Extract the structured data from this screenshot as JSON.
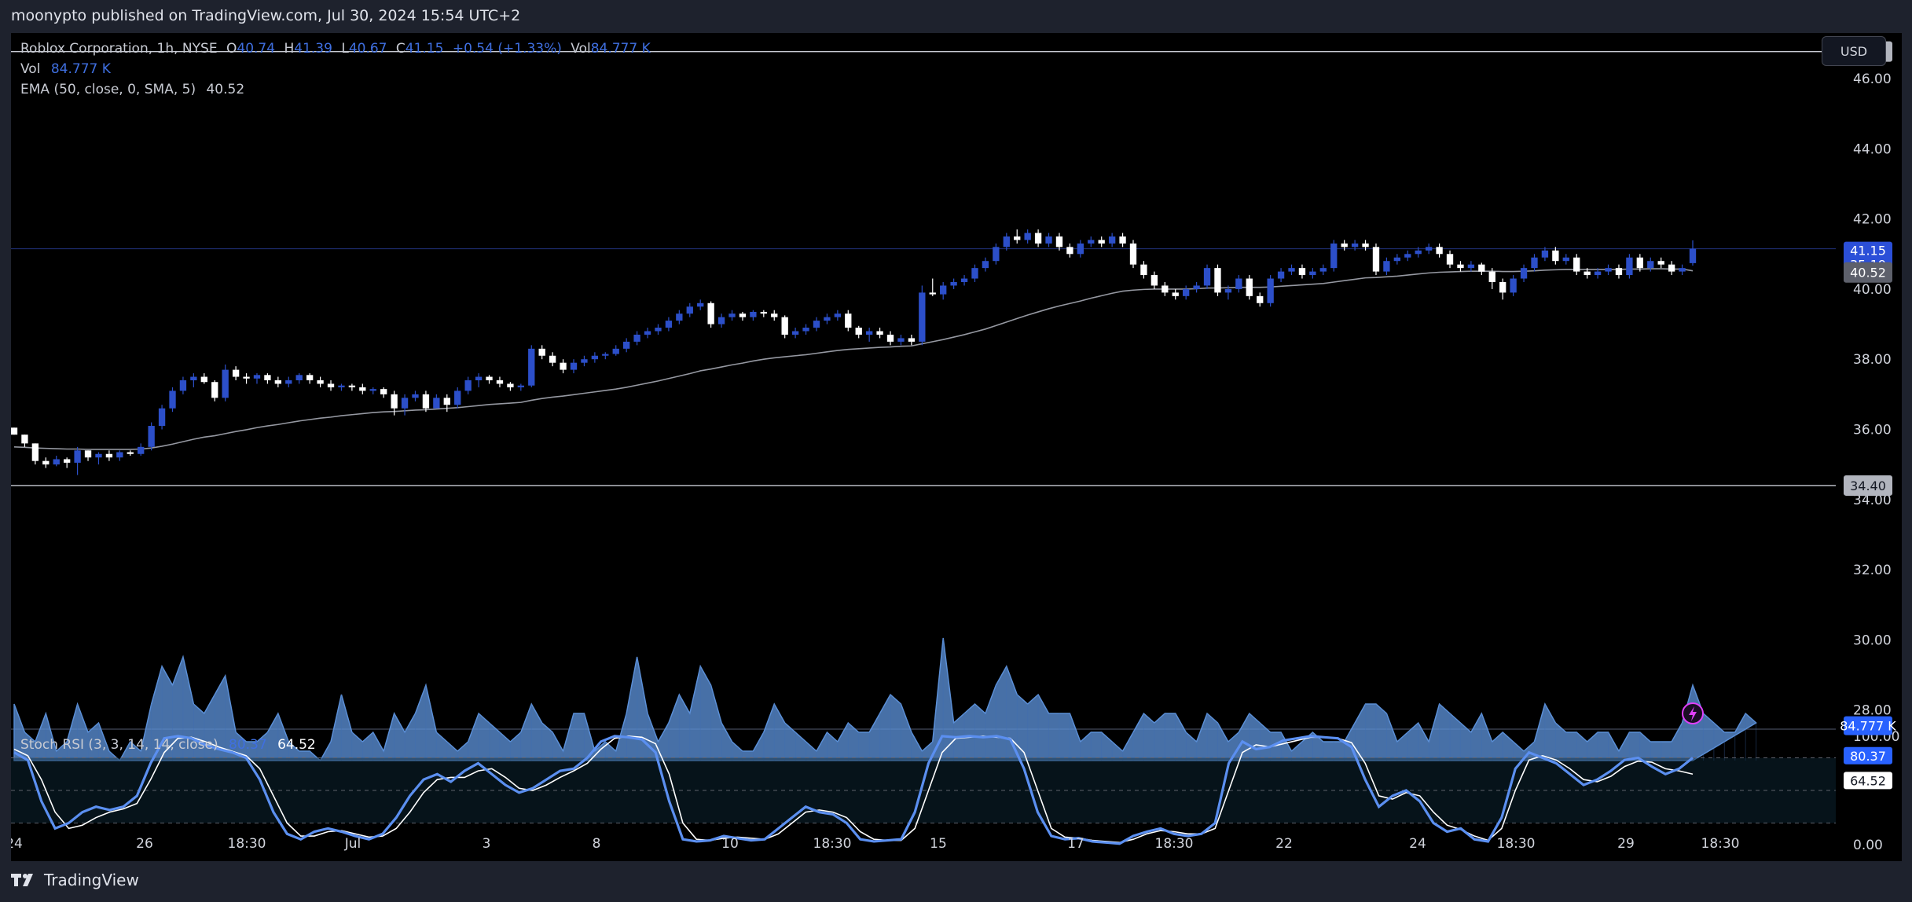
{
  "header": {
    "publisher": "moonypto published on TradingView.com, Jul 30, 2024 15:54 UTC+2"
  },
  "legend": {
    "symbol": "Roblox Corporation, 1h, NYSE",
    "o_label": "O",
    "o_value": "40.74",
    "h_label": "H",
    "h_value": "41.39",
    "l_label": "L",
    "l_value": "40.67",
    "c_label": "C",
    "c_value": "41.15",
    "change": "+0.54 (+1.33%)",
    "vol_label": "Vol",
    "vol_value": "84.777 K",
    "vol_row_label": "Vol",
    "vol_row_value": "84.777 K",
    "ema": "EMA (50, close, 0, SMA, 5)",
    "ema_value": "40.52",
    "stoch": "Stoch RSI (3, 3, 14, 14, close)",
    "stoch_k": "80.37",
    "stoch_d": "64.52"
  },
  "currency_button": "USD",
  "footer": {
    "brand": "TradingView"
  },
  "colors": {
    "up": "#2c4fc9",
    "down": "#ffffff",
    "volume": "#5b8fd6",
    "ema": "#9598a1",
    "stoch_k": "#5b8ff0",
    "stoch_d": "#ffffff",
    "accent": "#2962ff",
    "flash": "#e040fb"
  },
  "icons": {
    "flash": "lightning-icon",
    "logo": "tradingview-logo-icon"
  },
  "chart_data": {
    "type": "candlestick",
    "price_axis": {
      "ticks": [
        "46.00",
        "44.00",
        "42.00",
        "40.00",
        "38.00",
        "36.00",
        "34.00",
        "32.00",
        "30.00",
        "28.00"
      ],
      "range": [
        27.5,
        47.3
      ]
    },
    "stoch_axis": {
      "ticks": [
        "100.00",
        "0.00"
      ],
      "range": [
        -5,
        105
      ]
    },
    "x_ticks": [
      "24",
      "26",
      "18:30",
      "Jul",
      "3",
      "8",
      "10",
      "18:30",
      "15",
      "17",
      "18:30",
      "22",
      "24",
      "18:30",
      "29",
      "18:30"
    ],
    "horizontal_lines": [
      46.77,
      34.4
    ],
    "price_labels": {
      "high_line": "46.77",
      "low_line": "34.40",
      "last": "41.15",
      "countdown": "35:19",
      "ema": "40.52",
      "volume": "84.777 K",
      "stoch_k": "80.37",
      "stoch_d": "64.52"
    },
    "last_price": 41.15,
    "ema_value": 40.52,
    "candles": [
      [
        36.05,
        36.05,
        35.85,
        35.85
      ],
      [
        35.85,
        35.85,
        35.5,
        35.6
      ],
      [
        35.6,
        35.6,
        35.0,
        35.1
      ],
      [
        35.1,
        35.2,
        34.9,
        35.0
      ],
      [
        35.0,
        35.25,
        34.95,
        35.15
      ],
      [
        35.15,
        35.2,
        34.9,
        35.05
      ],
      [
        35.05,
        35.5,
        34.7,
        35.4
      ],
      [
        35.4,
        35.4,
        35.1,
        35.2
      ],
      [
        35.2,
        35.35,
        35.0,
        35.3
      ],
      [
        35.3,
        35.4,
        35.1,
        35.2
      ],
      [
        35.2,
        35.4,
        35.1,
        35.35
      ],
      [
        35.35,
        35.4,
        35.25,
        35.3
      ],
      [
        35.3,
        35.6,
        35.25,
        35.5
      ],
      [
        35.5,
        36.2,
        35.4,
        36.1
      ],
      [
        36.1,
        36.7,
        36.0,
        36.6
      ],
      [
        36.6,
        37.2,
        36.5,
        37.1
      ],
      [
        37.1,
        37.5,
        37.0,
        37.4
      ],
      [
        37.4,
        37.6,
        37.2,
        37.5
      ],
      [
        37.5,
        37.6,
        37.3,
        37.35
      ],
      [
        37.35,
        37.4,
        36.8,
        36.9
      ],
      [
        36.9,
        37.85,
        36.8,
        37.7
      ],
      [
        37.7,
        37.8,
        37.4,
        37.5
      ],
      [
        37.5,
        37.6,
        37.3,
        37.45
      ],
      [
        37.45,
        37.6,
        37.3,
        37.55
      ],
      [
        37.55,
        37.6,
        37.3,
        37.4
      ],
      [
        37.4,
        37.5,
        37.2,
        37.3
      ],
      [
        37.3,
        37.5,
        37.2,
        37.4
      ],
      [
        37.4,
        37.6,
        37.3,
        37.55
      ],
      [
        37.55,
        37.6,
        37.3,
        37.4
      ],
      [
        37.4,
        37.5,
        37.2,
        37.3
      ],
      [
        37.3,
        37.4,
        37.1,
        37.2
      ],
      [
        37.2,
        37.3,
        37.1,
        37.25
      ],
      [
        37.25,
        37.3,
        37.1,
        37.2
      ],
      [
        37.2,
        37.3,
        37.0,
        37.1
      ],
      [
        37.1,
        37.2,
        37.0,
        37.15
      ],
      [
        37.15,
        37.2,
        36.9,
        37.0
      ],
      [
        37.0,
        37.1,
        36.4,
        36.6
      ],
      [
        36.6,
        37.0,
        36.4,
        36.9
      ],
      [
        36.9,
        37.1,
        36.8,
        37.0
      ],
      [
        37.0,
        37.1,
        36.5,
        36.6
      ],
      [
        36.6,
        37.0,
        36.6,
        36.9
      ],
      [
        36.9,
        37.0,
        36.5,
        36.7
      ],
      [
        36.7,
        37.2,
        36.6,
        37.1
      ],
      [
        37.1,
        37.5,
        37.0,
        37.4
      ],
      [
        37.4,
        37.6,
        37.2,
        37.5
      ],
      [
        37.5,
        37.55,
        37.3,
        37.4
      ],
      [
        37.4,
        37.5,
        37.2,
        37.3
      ],
      [
        37.3,
        37.35,
        37.1,
        37.2
      ],
      [
        37.2,
        37.3,
        37.1,
        37.25
      ],
      [
        37.25,
        38.4,
        37.2,
        38.3
      ],
      [
        38.3,
        38.4,
        38.0,
        38.1
      ],
      [
        38.1,
        38.2,
        37.8,
        37.9
      ],
      [
        37.9,
        38.0,
        37.6,
        37.7
      ],
      [
        37.7,
        38.0,
        37.6,
        37.9
      ],
      [
        37.9,
        38.1,
        37.8,
        38.0
      ],
      [
        38.0,
        38.2,
        37.9,
        38.1
      ],
      [
        38.1,
        38.2,
        38.0,
        38.15
      ],
      [
        38.15,
        38.4,
        38.1,
        38.3
      ],
      [
        38.3,
        38.6,
        38.2,
        38.5
      ],
      [
        38.5,
        38.8,
        38.4,
        38.7
      ],
      [
        38.7,
        38.9,
        38.6,
        38.8
      ],
      [
        38.8,
        39.0,
        38.7,
        38.9
      ],
      [
        38.9,
        39.2,
        38.8,
        39.1
      ],
      [
        39.1,
        39.4,
        39.0,
        39.3
      ],
      [
        39.3,
        39.6,
        39.2,
        39.5
      ],
      [
        39.5,
        39.7,
        39.4,
        39.6
      ],
      [
        39.6,
        39.65,
        38.9,
        39.0
      ],
      [
        39.0,
        39.3,
        38.9,
        39.2
      ],
      [
        39.2,
        39.4,
        39.1,
        39.3
      ],
      [
        39.3,
        39.35,
        39.1,
        39.2
      ],
      [
        39.2,
        39.4,
        39.1,
        39.35
      ],
      [
        39.35,
        39.4,
        39.2,
        39.3
      ],
      [
        39.3,
        39.4,
        39.1,
        39.2
      ],
      [
        39.2,
        39.25,
        38.6,
        38.7
      ],
      [
        38.7,
        38.9,
        38.6,
        38.8
      ],
      [
        38.8,
        39.0,
        38.7,
        38.9
      ],
      [
        38.9,
        39.2,
        38.8,
        39.1
      ],
      [
        39.1,
        39.3,
        39.0,
        39.2
      ],
      [
        39.2,
        39.4,
        39.1,
        39.3
      ],
      [
        39.3,
        39.4,
        38.8,
        38.9
      ],
      [
        38.9,
        38.95,
        38.6,
        38.7
      ],
      [
        38.7,
        38.9,
        38.5,
        38.8
      ],
      [
        38.8,
        38.9,
        38.6,
        38.7
      ],
      [
        38.7,
        38.8,
        38.4,
        38.5
      ],
      [
        38.5,
        38.7,
        38.4,
        38.6
      ],
      [
        38.6,
        38.7,
        38.4,
        38.5
      ],
      [
        38.5,
        40.1,
        38.4,
        39.9
      ],
      [
        39.9,
        40.3,
        39.8,
        39.85
      ],
      [
        39.85,
        40.2,
        39.7,
        40.1
      ],
      [
        40.1,
        40.3,
        40.0,
        40.2
      ],
      [
        40.2,
        40.4,
        40.1,
        40.3
      ],
      [
        40.3,
        40.7,
        40.2,
        40.6
      ],
      [
        40.6,
        40.9,
        40.5,
        40.8
      ],
      [
        40.8,
        41.3,
        40.7,
        41.2
      ],
      [
        41.2,
        41.6,
        41.1,
        41.5
      ],
      [
        41.5,
        41.7,
        41.3,
        41.4
      ],
      [
        41.4,
        41.7,
        41.3,
        41.6
      ],
      [
        41.6,
        41.7,
        41.2,
        41.3
      ],
      [
        41.3,
        41.6,
        41.2,
        41.5
      ],
      [
        41.5,
        41.6,
        41.1,
        41.2
      ],
      [
        41.2,
        41.3,
        40.9,
        41.0
      ],
      [
        41.0,
        41.4,
        40.9,
        41.3
      ],
      [
        41.3,
        41.5,
        41.2,
        41.4
      ],
      [
        41.4,
        41.5,
        41.2,
        41.3
      ],
      [
        41.3,
        41.6,
        41.2,
        41.5
      ],
      [
        41.5,
        41.6,
        41.2,
        41.3
      ],
      [
        41.3,
        41.4,
        40.6,
        40.7
      ],
      [
        40.7,
        40.8,
        40.3,
        40.4
      ],
      [
        40.4,
        40.5,
        40.0,
        40.1
      ],
      [
        40.1,
        40.2,
        39.8,
        39.9
      ],
      [
        39.9,
        40.0,
        39.7,
        39.8
      ],
      [
        39.8,
        40.1,
        39.7,
        40.0
      ],
      [
        40.0,
        40.2,
        39.9,
        40.1
      ],
      [
        40.1,
        40.7,
        40.0,
        40.6
      ],
      [
        40.6,
        40.7,
        39.8,
        39.9
      ],
      [
        39.9,
        40.1,
        39.7,
        40.0
      ],
      [
        40.0,
        40.4,
        39.9,
        40.3
      ],
      [
        40.3,
        40.4,
        39.7,
        39.8
      ],
      [
        39.8,
        39.9,
        39.5,
        39.6
      ],
      [
        39.6,
        40.4,
        39.5,
        40.3
      ],
      [
        40.3,
        40.6,
        40.2,
        40.5
      ],
      [
        40.5,
        40.7,
        40.4,
        40.6
      ],
      [
        40.6,
        40.7,
        40.3,
        40.4
      ],
      [
        40.4,
        40.6,
        40.3,
        40.5
      ],
      [
        40.5,
        40.7,
        40.4,
        40.6
      ],
      [
        40.6,
        41.4,
        40.5,
        41.3
      ],
      [
        41.3,
        41.4,
        41.1,
        41.2
      ],
      [
        41.2,
        41.4,
        41.1,
        41.3
      ],
      [
        41.3,
        41.4,
        41.1,
        41.2
      ],
      [
        41.2,
        41.3,
        40.4,
        40.5
      ],
      [
        40.5,
        40.9,
        40.4,
        40.8
      ],
      [
        40.8,
        41.0,
        40.7,
        40.9
      ],
      [
        40.9,
        41.1,
        40.8,
        41.0
      ],
      [
        41.0,
        41.2,
        40.9,
        41.1
      ],
      [
        41.1,
        41.3,
        41.0,
        41.2
      ],
      [
        41.2,
        41.3,
        40.9,
        41.0
      ],
      [
        41.0,
        41.1,
        40.6,
        40.7
      ],
      [
        40.7,
        40.8,
        40.5,
        40.6
      ],
      [
        40.6,
        40.8,
        40.5,
        40.7
      ],
      [
        40.7,
        40.75,
        40.4,
        40.5
      ],
      [
        40.5,
        40.6,
        40.0,
        40.2
      ],
      [
        40.2,
        40.3,
        39.7,
        39.9
      ],
      [
        39.9,
        40.4,
        39.8,
        40.3
      ],
      [
        40.3,
        40.7,
        40.2,
        40.6
      ],
      [
        40.6,
        41.0,
        40.5,
        40.9
      ],
      [
        40.9,
        41.2,
        40.8,
        41.1
      ],
      [
        41.1,
        41.2,
        40.7,
        40.8
      ],
      [
        40.8,
        41.0,
        40.7,
        40.9
      ],
      [
        40.9,
        41.0,
        40.4,
        40.5
      ],
      [
        40.5,
        40.6,
        40.3,
        40.4
      ],
      [
        40.4,
        40.6,
        40.3,
        40.5
      ],
      [
        40.5,
        40.7,
        40.4,
        40.6
      ],
      [
        40.6,
        40.7,
        40.3,
        40.4
      ],
      [
        40.4,
        41.0,
        40.3,
        40.9
      ],
      [
        40.9,
        41.0,
        40.5,
        40.6
      ],
      [
        40.6,
        40.9,
        40.5,
        40.8
      ],
      [
        40.8,
        40.9,
        40.6,
        40.7
      ],
      [
        40.7,
        40.8,
        40.4,
        40.5
      ],
      [
        40.5,
        40.7,
        40.4,
        40.6
      ],
      [
        40.74,
        41.39,
        40.67,
        41.15
      ]
    ],
    "ema": [
      35.5,
      35.49,
      35.47,
      35.46,
      35.45,
      35.44,
      35.44,
      35.43,
      35.43,
      35.43,
      35.43,
      35.43,
      35.44,
      35.47,
      35.52,
      35.58,
      35.65,
      35.72,
      35.78,
      35.82,
      35.88,
      35.94,
      35.99,
      36.05,
      36.1,
      36.14,
      36.19,
      36.24,
      36.28,
      36.32,
      36.35,
      36.39,
      36.42,
      36.45,
      36.48,
      36.5,
      36.51,
      36.53,
      36.55,
      36.56,
      36.58,
      36.6,
      36.62,
      36.65,
      36.68,
      36.71,
      36.73,
      36.75,
      36.77,
      36.83,
      36.88,
      36.92,
      36.95,
      36.99,
      37.03,
      37.07,
      37.11,
      37.15,
      37.2,
      37.26,
      37.32,
      37.38,
      37.45,
      37.52,
      37.59,
      37.67,
      37.72,
      37.78,
      37.84,
      37.89,
      37.95,
      38.0,
      38.04,
      38.07,
      38.1,
      38.13,
      38.17,
      38.21,
      38.25,
      38.28,
      38.3,
      38.32,
      38.34,
      38.35,
      38.37,
      38.38,
      38.44,
      38.5,
      38.56,
      38.63,
      38.7,
      38.78,
      38.86,
      38.96,
      39.06,
      39.16,
      39.26,
      39.35,
      39.44,
      39.52,
      39.59,
      39.66,
      39.74,
      39.81,
      39.88,
      39.94,
      39.97,
      39.99,
      40.0,
      40.0,
      40.0,
      40.0,
      40.01,
      40.03,
      40.03,
      40.04,
      40.05,
      40.05,
      40.05,
      40.06,
      40.08,
      40.1,
      40.12,
      40.14,
      40.16,
      40.2,
      40.24,
      40.28,
      40.32,
      40.33,
      40.35,
      40.37,
      40.4,
      40.43,
      40.46,
      40.48,
      40.49,
      40.5,
      40.51,
      40.51,
      40.51,
      40.5,
      40.5,
      40.51,
      40.52,
      40.54,
      40.55,
      40.56,
      40.56,
      40.56,
      40.56,
      40.56,
      40.56,
      40.57,
      40.57,
      40.58,
      40.58,
      40.57,
      40.57,
      40.52
    ],
    "volume": [
      31,
      28,
      27,
      30,
      26,
      27,
      31,
      28,
      29,
      26,
      25,
      27,
      26,
      31,
      35,
      33,
      36,
      31,
      30,
      32,
      34,
      28,
      27,
      27,
      28,
      30,
      27,
      26,
      26,
      25,
      27,
      32,
      28,
      27,
      28,
      26,
      30,
      28,
      30,
      33,
      28,
      27,
      26,
      27,
      30,
      29,
      28,
      27,
      28,
      31,
      29,
      28,
      26,
      30,
      30,
      26,
      27,
      26,
      30,
      36,
      30,
      27,
      29,
      32,
      30,
      35,
      33,
      29,
      27,
      26,
      26,
      28,
      31,
      29,
      28,
      27,
      26,
      28,
      27,
      29,
      28,
      28,
      30,
      32,
      31,
      28,
      26,
      27,
      38,
      29,
      30,
      31,
      30,
      33,
      35,
      32,
      31,
      32,
      30,
      30,
      30,
      27,
      28,
      28,
      27,
      26,
      28,
      30,
      29,
      30,
      30,
      28,
      27,
      30,
      29,
      27,
      28,
      30,
      29,
      28,
      28,
      26,
      27,
      28,
      27,
      27,
      27,
      29,
      31,
      31,
      30,
      27,
      28,
      29,
      27,
      31,
      30,
      29,
      28,
      30,
      27,
      28,
      27,
      26,
      27,
      31,
      29,
      28,
      28,
      27,
      28,
      28,
      26,
      28,
      28,
      27,
      27,
      27,
      29,
      33,
      30,
      29,
      28,
      28,
      30,
      29
    ],
    "stoch_k": [
      85,
      78,
      40,
      15,
      20,
      30,
      35,
      32,
      35,
      45,
      75,
      98,
      100,
      98,
      92,
      88,
      85,
      80,
      60,
      30,
      10,
      5,
      12,
      15,
      12,
      8,
      5,
      10,
      25,
      45,
      60,
      65,
      58,
      68,
      75,
      65,
      55,
      48,
      52,
      60,
      68,
      70,
      80,
      95,
      100,
      99,
      97,
      85,
      40,
      5,
      3,
      4,
      8,
      6,
      4,
      5,
      15,
      25,
      35,
      30,
      28,
      20,
      5,
      3,
      4,
      5,
      30,
      75,
      100,
      99,
      100,
      99,
      100,
      97,
      70,
      30,
      8,
      5,
      6,
      3,
      2,
      1,
      8,
      12,
      15,
      10,
      8,
      10,
      20,
      75,
      95,
      88,
      90,
      96,
      98,
      100,
      99,
      98,
      90,
      60,
      35,
      45,
      50,
      40,
      20,
      12,
      15,
      5,
      3,
      25,
      70,
      85,
      80,
      75,
      65,
      55,
      60,
      68,
      78,
      80,
      72,
      65,
      70,
      80
    ],
    "stoch_d": [
      88,
      82,
      60,
      30,
      15,
      18,
      25,
      30,
      33,
      38,
      60,
      85,
      98,
      99,
      95,
      90,
      86,
      82,
      70,
      45,
      20,
      8,
      8,
      12,
      13,
      10,
      7,
      8,
      15,
      30,
      48,
      60,
      62,
      62,
      68,
      70,
      62,
      52,
      50,
      55,
      62,
      68,
      75,
      88,
      98,
      100,
      99,
      93,
      65,
      20,
      5,
      4,
      6,
      7,
      6,
      5,
      10,
      20,
      30,
      32,
      30,
      25,
      12,
      5,
      4,
      4,
      15,
      50,
      85,
      98,
      99,
      100,
      99,
      98,
      85,
      50,
      15,
      7,
      6,
      4,
      3,
      2,
      5,
      10,
      13,
      12,
      10,
      10,
      15,
      50,
      85,
      92,
      90,
      93,
      96,
      99,
      99,
      98,
      94,
      75,
      45,
      42,
      48,
      45,
      30,
      18,
      14,
      8,
      4,
      15,
      50,
      78,
      82,
      78,
      70,
      60,
      58,
      63,
      72,
      77,
      76,
      70,
      68,
      65
    ]
  }
}
